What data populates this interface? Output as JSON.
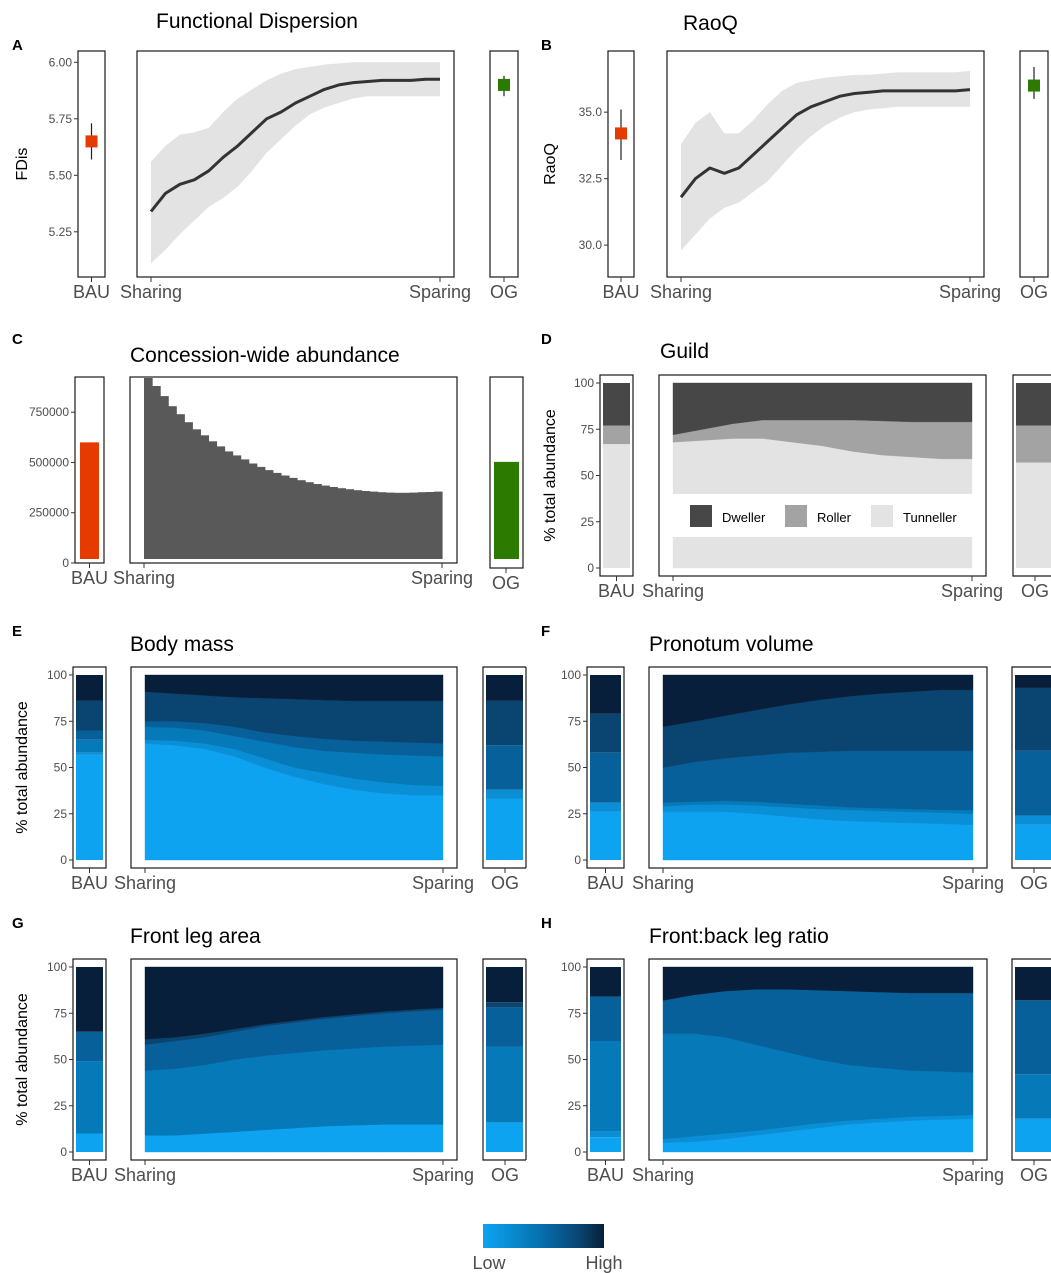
{
  "colors": {
    "bau": "#e63b00",
    "og": "#2c7a00",
    "line": "#333333",
    "band": "#e3e3e3",
    "bar_gray": "#595959",
    "guild": {
      "Dweller": "#474747",
      "Roller": "#a3a3a3",
      "Tunneller": "#e3e3e3"
    },
    "levels": [
      "#0ea3f0",
      "#0a8fd6",
      "#0679b8",
      "#07609a",
      "#0a4470",
      "#071f3a"
    ]
  },
  "chart_data": [
    {
      "panel": "A",
      "type": "line",
      "title": "Functional Dispersion",
      "ylabel": "FDis",
      "ylim": [
        5.05,
        6.05
      ],
      "yticks": [
        5.25,
        5.5,
        5.75,
        6.0
      ],
      "ytick_labels": [
        "5.25",
        "5.50",
        "5.75",
        "6.00"
      ],
      "x_labels": [
        "Sharing",
        "Sparing"
      ],
      "bau": {
        "label": "BAU",
        "value": 5.65,
        "lo": 5.57,
        "hi": 5.73
      },
      "og": {
        "label": "OG",
        "value": 5.9,
        "lo": 5.85,
        "hi": 5.94
      },
      "x": [
        0,
        0.05,
        0.1,
        0.15,
        0.2,
        0.25,
        0.3,
        0.35,
        0.4,
        0.45,
        0.5,
        0.55,
        0.6,
        0.65,
        0.7,
        0.75,
        0.8,
        0.85,
        0.9,
        0.95,
        1
      ],
      "y": [
        5.34,
        5.42,
        5.46,
        5.48,
        5.52,
        5.58,
        5.63,
        5.69,
        5.75,
        5.78,
        5.82,
        5.85,
        5.88,
        5.9,
        5.91,
        5.915,
        5.92,
        5.92,
        5.92,
        5.925,
        5.925
      ],
      "lower": [
        5.11,
        5.17,
        5.24,
        5.3,
        5.36,
        5.4,
        5.45,
        5.52,
        5.6,
        5.66,
        5.72,
        5.77,
        5.8,
        5.82,
        5.84,
        5.85,
        5.85,
        5.85,
        5.85,
        5.85,
        5.85
      ],
      "upper": [
        5.56,
        5.63,
        5.68,
        5.69,
        5.71,
        5.78,
        5.84,
        5.88,
        5.92,
        5.95,
        5.97,
        5.98,
        5.99,
        5.995,
        6.0,
        6.0,
        6.0,
        6.0,
        6.0,
        6.0,
        6.0
      ]
    },
    {
      "panel": "B",
      "type": "line",
      "title": "RaoQ",
      "ylabel": "RaoQ",
      "ylim": [
        28.8,
        37.3
      ],
      "yticks": [
        30.0,
        32.5,
        35.0
      ],
      "ytick_labels": [
        "30.0",
        "32.5",
        "35.0"
      ],
      "x_labels": [
        "Sharing",
        "Sparing"
      ],
      "bau": {
        "label": "BAU",
        "value": 34.2,
        "lo": 33.2,
        "hi": 35.1
      },
      "og": {
        "label": "OG",
        "value": 36.0,
        "lo": 35.5,
        "hi": 36.7
      },
      "x": [
        0,
        0.05,
        0.1,
        0.15,
        0.2,
        0.25,
        0.3,
        0.35,
        0.4,
        0.45,
        0.5,
        0.55,
        0.6,
        0.65,
        0.7,
        0.75,
        0.8,
        0.85,
        0.9,
        0.95,
        1
      ],
      "y": [
        31.8,
        32.5,
        32.9,
        32.7,
        32.9,
        33.4,
        33.9,
        34.4,
        34.9,
        35.2,
        35.4,
        35.6,
        35.7,
        35.75,
        35.8,
        35.8,
        35.8,
        35.8,
        35.8,
        35.8,
        35.85
      ],
      "lower": [
        29.8,
        30.4,
        31.0,
        31.4,
        31.6,
        32.0,
        32.4,
        33.0,
        33.6,
        34.1,
        34.5,
        34.8,
        35.0,
        35.1,
        35.15,
        35.2,
        35.2,
        35.2,
        35.2,
        35.2,
        35.2
      ],
      "upper": [
        33.8,
        34.6,
        35.0,
        34.2,
        34.2,
        34.7,
        35.3,
        35.8,
        36.1,
        36.2,
        36.3,
        36.35,
        36.4,
        36.4,
        36.45,
        36.5,
        36.5,
        36.5,
        36.5,
        36.5,
        36.55
      ]
    },
    {
      "panel": "C",
      "type": "bar",
      "title": "Concession-wide abundance",
      "ylim": [
        0,
        925000
      ],
      "yticks": [
        0,
        250000,
        500000,
        750000
      ],
      "ytick_labels": [
        "0",
        "250000",
        "500000",
        "750000"
      ],
      "x_labels": [
        "Sharing",
        "Sparing"
      ],
      "bau": {
        "label": "BAU",
        "value": 600000
      },
      "og": {
        "label": "OG",
        "value": 503000
      },
      "values": [
        920000,
        880000,
        830000,
        780000,
        740000,
        700000,
        665000,
        635000,
        605000,
        580000,
        555000,
        535000,
        515000,
        495000,
        478000,
        462000,
        448000,
        435000,
        423000,
        412000,
        402000,
        393000,
        385000,
        378000,
        372000,
        367000,
        362000,
        358000,
        355000,
        352000,
        350000,
        349000,
        349000,
        350000,
        352000,
        353000,
        355000
      ]
    },
    {
      "panel": "D",
      "type": "area",
      "title": "Guild",
      "ylabel": "% total abundance",
      "ylim": [
        0,
        100
      ],
      "yticks": [
        0,
        25,
        50,
        75,
        100
      ],
      "ytick_labels": [
        "0",
        "25",
        "50",
        "75",
        "100"
      ],
      "x_labels": [
        "Sharing",
        "Sparing"
      ],
      "legend": [
        "Dweller",
        "Roller",
        "Tunneller"
      ],
      "legend_position": "inside-bottom",
      "bau_label": "BAU",
      "og_label": "OG",
      "bau_boundaries": [
        67,
        77
      ],
      "og_boundaries": [
        57,
        77
      ],
      "x": [
        0,
        0.1,
        0.2,
        0.3,
        0.4,
        0.5,
        0.6,
        0.7,
        0.8,
        0.9,
        1
      ],
      "boundaries": [
        [
          68,
          69,
          70,
          70,
          68,
          66,
          63,
          61,
          60,
          59,
          59
        ],
        [
          72,
          75,
          78,
          80,
          80,
          80,
          80,
          79.5,
          79,
          79,
          79
        ]
      ]
    },
    {
      "panel": "E",
      "type": "area",
      "title": "Body mass",
      "ylabel": "% total abundance",
      "ylim": [
        0,
        100
      ],
      "yticks": [
        0,
        25,
        50,
        75,
        100
      ],
      "ytick_labels": [
        "0",
        "25",
        "50",
        "75",
        "100"
      ],
      "x_labels": [
        "Sharing",
        "Sparing"
      ],
      "bau_label": "BAU",
      "og_label": "OG",
      "bau_boundaries": [
        57,
        58,
        65,
        70,
        86
      ],
      "og_boundaries": [
        33,
        38,
        38,
        62,
        86
      ],
      "x": [
        0,
        0.1,
        0.2,
        0.3,
        0.4,
        0.5,
        0.6,
        0.7,
        0.8,
        0.9,
        1
      ],
      "boundaries": [
        [
          63,
          62,
          60,
          56,
          50,
          45,
          41,
          38,
          36,
          35,
          35
        ],
        [
          65,
          64.5,
          63,
          60,
          55,
          50,
          47,
          44,
          42,
          40.5,
          40
        ],
        [
          72,
          71.5,
          70,
          67,
          64,
          61,
          59,
          58,
          57,
          56.5,
          56
        ],
        [
          75,
          75,
          74,
          72,
          69,
          67,
          65.5,
          64.5,
          64,
          63.5,
          63
        ],
        [
          91,
          90,
          89,
          88,
          87.5,
          87,
          86.5,
          86,
          86,
          86,
          86
        ]
      ]
    },
    {
      "panel": "F",
      "type": "area",
      "title": "Pronotum volume",
      "ylim": [
        0,
        100
      ],
      "yticks": [
        0,
        25,
        50,
        75,
        100
      ],
      "ytick_labels": [
        "0",
        "25",
        "50",
        "75",
        "100"
      ],
      "x_labels": [
        "Sharing",
        "Sparing"
      ],
      "bau_label": "BAU",
      "og_label": "OG",
      "bau_boundaries": [
        26,
        31,
        31,
        58,
        79
      ],
      "og_boundaries": [
        19,
        24,
        24,
        59,
        93
      ],
      "x": [
        0,
        0.1,
        0.2,
        0.3,
        0.4,
        0.5,
        0.6,
        0.7,
        0.8,
        0.9,
        1
      ],
      "boundaries": [
        [
          26,
          26,
          26,
          25,
          23.5,
          22,
          21,
          20.5,
          20,
          19.5,
          19
        ],
        [
          29,
          30,
          30,
          29.5,
          28.5,
          27.5,
          27,
          26.5,
          26,
          25.5,
          25
        ],
        [
          31,
          31.5,
          32,
          31.5,
          30.5,
          29.5,
          28.5,
          28,
          27.5,
          27,
          27
        ],
        [
          50,
          53,
          55,
          56.5,
          58,
          58.5,
          59,
          59,
          59,
          59,
          59
        ],
        [
          72,
          75,
          78,
          81,
          84,
          86.5,
          88.5,
          90,
          91,
          92,
          92
        ]
      ]
    },
    {
      "panel": "G",
      "type": "area",
      "title": "Front leg area",
      "ylabel": "% total abundance",
      "ylim": [
        0,
        100
      ],
      "yticks": [
        0,
        25,
        50,
        75,
        100
      ],
      "ytick_labels": [
        "0",
        "25",
        "50",
        "75",
        "100"
      ],
      "x_labels": [
        "Sharing",
        "Sparing"
      ],
      "bau_label": "BAU",
      "og_label": "OG",
      "bau_boundaries": [
        10,
        10,
        49,
        65,
        65
      ],
      "og_boundaries": [
        16,
        16,
        57,
        78,
        81
      ],
      "x": [
        0,
        0.1,
        0.2,
        0.3,
        0.4,
        0.5,
        0.6,
        0.7,
        0.8,
        0.9,
        1
      ],
      "boundaries": [
        [
          9,
          9,
          10,
          11,
          12,
          13,
          14,
          14.5,
          15,
          15,
          15
        ],
        [
          9,
          9,
          10,
          11,
          12,
          13,
          14,
          14.5,
          15,
          15,
          15
        ],
        [
          44,
          45,
          47,
          50,
          52,
          53.5,
          55,
          56,
          57,
          57.5,
          58
        ],
        [
          58,
          60,
          62,
          65,
          68,
          70,
          72,
          73.5,
          75,
          76,
          77
        ],
        [
          61,
          62,
          64,
          66.5,
          69,
          71,
          73,
          74.5,
          76,
          77,
          78
        ]
      ]
    },
    {
      "panel": "H",
      "type": "area",
      "title": "Front:back leg ratio",
      "ylim": [
        0,
        100
      ],
      "yticks": [
        0,
        25,
        50,
        75,
        100
      ],
      "ytick_labels": [
        "0",
        "25",
        "50",
        "75",
        "100"
      ],
      "x_labels": [
        "Sharing",
        "Sparing"
      ],
      "bau_label": "BAU",
      "og_label": "OG",
      "bau_boundaries": [
        8,
        11,
        60,
        84,
        84
      ],
      "og_boundaries": [
        18,
        18,
        42,
        82,
        82
      ],
      "x": [
        0,
        0.1,
        0.2,
        0.3,
        0.4,
        0.5,
        0.6,
        0.7,
        0.8,
        0.9,
        1
      ],
      "boundaries": [
        [
          5,
          5.5,
          7,
          9,
          11,
          13,
          15,
          16,
          17,
          17.5,
          18
        ],
        [
          7,
          8.5,
          10,
          11.5,
          13.5,
          15.5,
          17,
          18,
          19,
          19.5,
          20
        ],
        [
          64,
          64,
          62,
          58,
          54,
          50,
          47,
          45.5,
          44,
          43.5,
          43
        ],
        [
          82,
          85,
          87,
          88,
          88,
          87.5,
          87,
          86.5,
          86,
          86,
          86
        ],
        [
          82,
          85,
          87,
          88,
          88,
          87.5,
          87,
          86.5,
          86,
          86,
          86
        ]
      ]
    }
  ],
  "colorbar": {
    "low_label": "Low",
    "high_label": "High"
  }
}
